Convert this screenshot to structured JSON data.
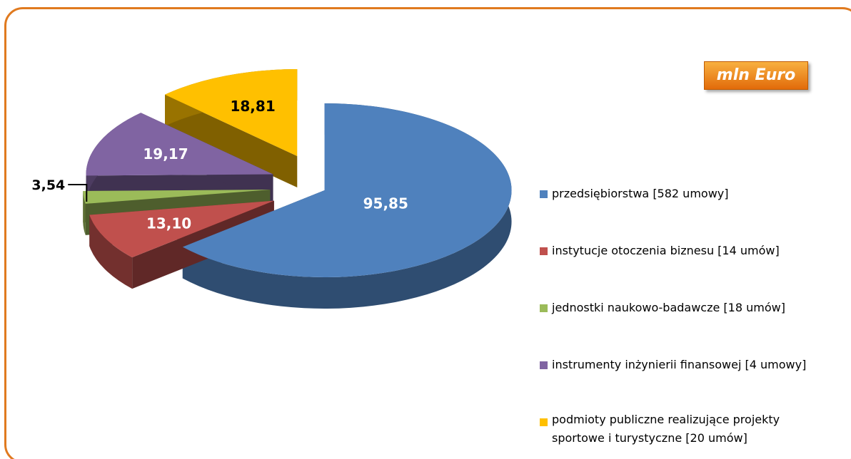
{
  "chart_data": {
    "type": "pie",
    "annotation": "mln Euro",
    "categories": [
      "przedsiębiorstwa [582 umowy]",
      "instytucje otoczenia biznesu [14 umów]",
      "jednostki naukowo-badawcze [18 umów]",
      "instrumenty inżynierii finansowej [4 umowy]",
      "podmioty publiczne realizujące projekty sportowe i turystyczne [20 umów]"
    ],
    "values": [
      95.85,
      13.1,
      3.54,
      19.17,
      18.81
    ],
    "value_labels": [
      "95,85",
      "13,10",
      "3,54",
      "19,17",
      "18,81"
    ],
    "colors": [
      "#4f81bd",
      "#c0504d",
      "#9bbb59",
      "#8064a2",
      "#ffc000"
    ]
  }
}
